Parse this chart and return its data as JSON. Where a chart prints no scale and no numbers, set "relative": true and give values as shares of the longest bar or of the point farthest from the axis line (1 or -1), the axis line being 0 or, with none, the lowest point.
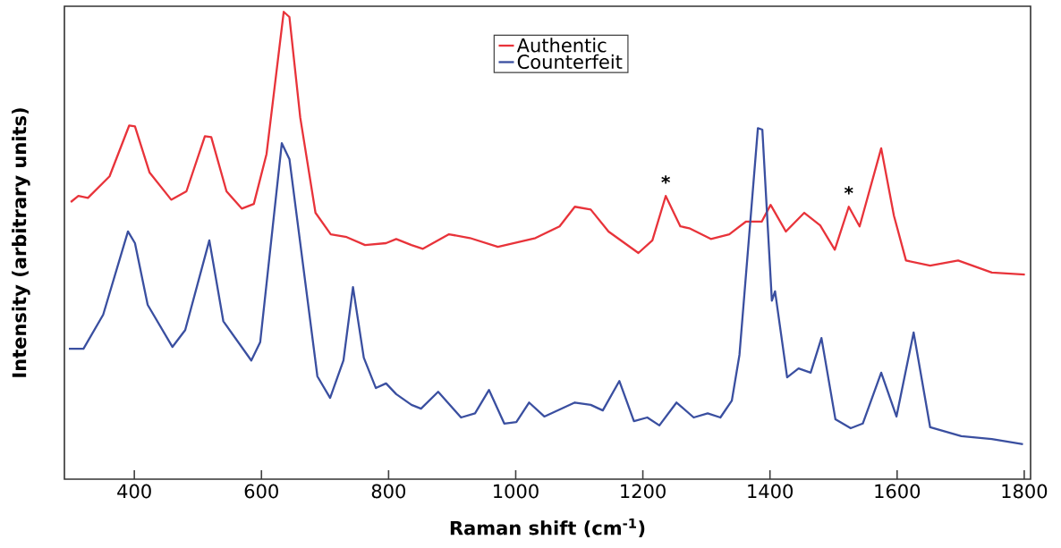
{
  "chart_data": {
    "type": "line",
    "xlabel": "Raman shift (cm$^{-1}$)",
    "ylabel": "Intensity (arbitrary units)",
    "relative": true,
    "legend": "top",
    "xlim": [
      290,
      1810
    ],
    "xticks": [
      400,
      600,
      800,
      1000,
      1200,
      1400,
      1600,
      1800
    ],
    "annotations": [
      {
        "text": "*",
        "x": 1236,
        "y": 0.606
      },
      {
        "text": "*",
        "x": 1524,
        "y": 0.583
      }
    ],
    "series": [
      {
        "name": "Authentic",
        "color": "#e8333a",
        "x": [
          300,
          312,
          327,
          361,
          392,
          401,
          424,
          458,
          482,
          511,
          521,
          545,
          569,
          588,
          608,
          635,
          644,
          661,
          685,
          709,
          734,
          763,
          796,
          812,
          836,
          854,
          895,
          928,
          972,
          1031,
          1069,
          1093,
          1118,
          1146,
          1193,
          1215,
          1236,
          1259,
          1273,
          1307,
          1336,
          1362,
          1387,
          1401,
          1425,
          1454,
          1479,
          1502,
          1524,
          1541,
          1575,
          1595,
          1614,
          1652,
          1696,
          1749,
          1801
        ],
        "values": [
          0.593,
          0.606,
          0.602,
          0.648,
          0.757,
          0.755,
          0.656,
          0.598,
          0.616,
          0.734,
          0.732,
          0.616,
          0.579,
          0.589,
          0.696,
          1.0,
          0.989,
          0.774,
          0.57,
          0.524,
          0.518,
          0.501,
          0.505,
          0.514,
          0.501,
          0.493,
          0.524,
          0.516,
          0.497,
          0.516,
          0.541,
          0.583,
          0.577,
          0.53,
          0.484,
          0.511,
          0.606,
          0.541,
          0.537,
          0.514,
          0.524,
          0.551,
          0.551,
          0.587,
          0.53,
          0.57,
          0.543,
          0.491,
          0.583,
          0.541,
          0.708,
          0.564,
          0.468,
          0.457,
          0.468,
          0.442,
          0.438
        ]
      },
      {
        "name": "Counterfeit",
        "color": "#3a4fa0",
        "x": [
          297,
          320,
          351,
          390,
          401,
          421,
          460,
          480,
          518,
          540,
          584,
          598,
          632,
          644,
          688,
          708,
          729,
          744,
          761,
          780,
          796,
          812,
          836,
          851,
          878,
          914,
          936,
          958,
          982,
          1001,
          1021,
          1045,
          1093,
          1118,
          1137,
          1163,
          1186,
          1207,
          1226,
          1253,
          1280,
          1302,
          1322,
          1340,
          1352,
          1381,
          1388,
          1403,
          1408,
          1427,
          1445,
          1464,
          1481,
          1503,
          1527,
          1546,
          1575,
          1599,
          1626,
          1652,
          1701,
          1749,
          1798
        ],
        "values": [
          0.279,
          0.279,
          0.352,
          0.53,
          0.505,
          0.373,
          0.283,
          0.319,
          0.511,
          0.338,
          0.254,
          0.293,
          0.719,
          0.685,
          0.22,
          0.174,
          0.254,
          0.411,
          0.26,
          0.195,
          0.205,
          0.182,
          0.159,
          0.151,
          0.187,
          0.132,
          0.141,
          0.191,
          0.119,
          0.122,
          0.164,
          0.134,
          0.164,
          0.159,
          0.147,
          0.21,
          0.124,
          0.132,
          0.115,
          0.164,
          0.132,
          0.141,
          0.132,
          0.168,
          0.266,
          0.751,
          0.748,
          0.382,
          0.402,
          0.218,
          0.237,
          0.228,
          0.302,
          0.128,
          0.109,
          0.119,
          0.228,
          0.134,
          0.314,
          0.111,
          0.092,
          0.086,
          0.075
        ]
      }
    ]
  }
}
